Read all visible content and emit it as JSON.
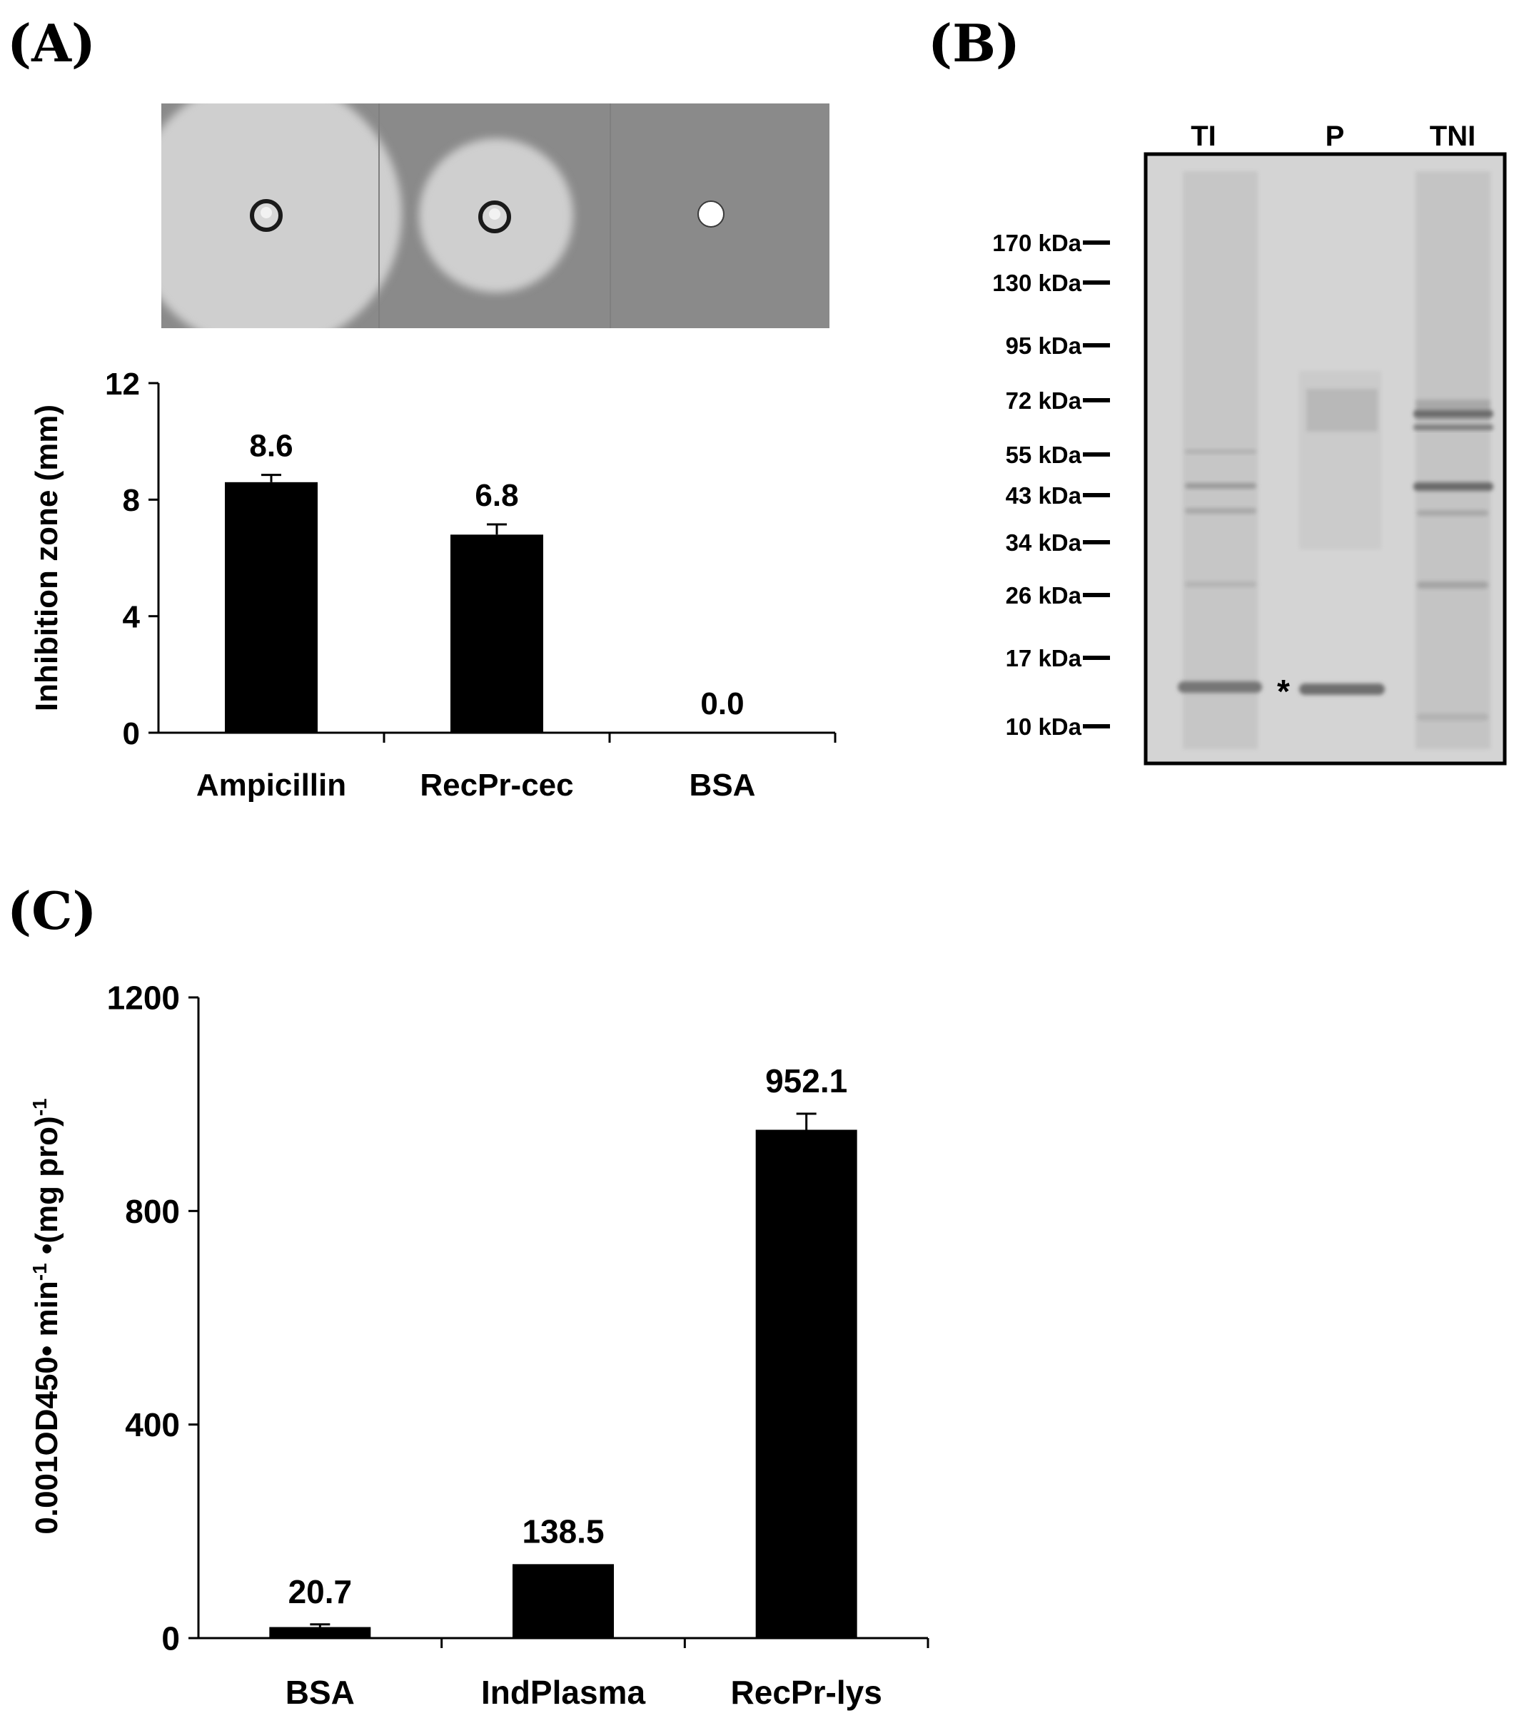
{
  "panels": {
    "a": {
      "label": "(A)"
    },
    "b": {
      "label": "(B)"
    },
    "c": {
      "label": "(C)"
    }
  },
  "gel": {
    "lanes": [
      "TI",
      "P",
      "TNI"
    ],
    "markers": [
      "170 kDa",
      "130 kDa",
      "95 kDa",
      "72 kDa",
      "55 kDa",
      "43 kDa",
      "34 kDa",
      "26 kDa",
      "17 kDa",
      "10 kDa"
    ],
    "marker_values_kda": [
      170,
      130,
      95,
      72,
      55,
      43,
      34,
      26,
      17,
      10
    ],
    "band_mark": "*"
  },
  "colors": {
    "bar": "#000000",
    "plate_background": "#8a8a8a",
    "inhibition_zone": "#cfcfcf",
    "gel_background": "#d4d4d4"
  },
  "chart_data": [
    {
      "type": "bar",
      "panel": "A",
      "categories": [
        "Ampicillin",
        "RecPr-cec",
        "BSA"
      ],
      "values": [
        8.6,
        6.8,
        0.0
      ],
      "value_labels": [
        "8.6",
        "6.8",
        "0.0"
      ],
      "errors": [
        0.25,
        0.35,
        0
      ],
      "ylabel": "Inhibition zone (mm)",
      "xlabel": "",
      "ylim": [
        0,
        12
      ],
      "yticks": [
        "0",
        "4",
        "8",
        "12"
      ],
      "ytick_values": [
        0,
        4,
        8,
        12
      ]
    },
    {
      "type": "bar",
      "panel": "C",
      "categories": [
        "BSA",
        "IndPlasma",
        "RecPr-lys"
      ],
      "values": [
        20.7,
        138.5,
        952.1
      ],
      "value_labels": [
        "20.7",
        "138.5",
        "952.1"
      ],
      "errors": [
        5,
        0,
        30
      ],
      "ylabel_parts": [
        "0.001OD450",
        "• min",
        "-1",
        " •(mg pro)",
        "-1"
      ],
      "xlabel": "",
      "ylim": [
        0,
        1200
      ],
      "yticks": [
        "0",
        "400",
        "800",
        "1200"
      ],
      "ytick_values": [
        0,
        400,
        800,
        1200
      ]
    }
  ]
}
